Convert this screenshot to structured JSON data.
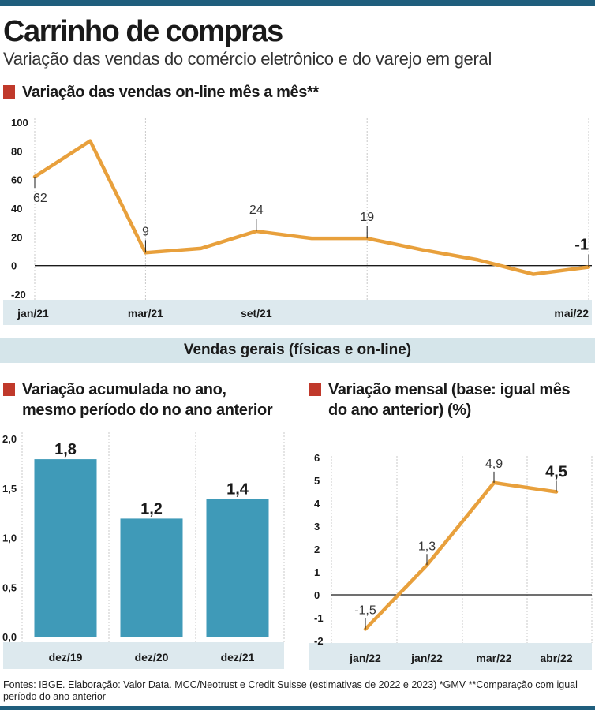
{
  "header": {
    "title": "Carrinho de compras",
    "subtitle": "Variação das vendas do comércio eletrônico e do varejo em geral"
  },
  "band_label": "Vendas gerais (físicas e on-line)",
  "footer": "Fontes: IBGE. Elaboração: Valor Data. MCC/Neotrust e Credit Suisse (estimativas de 2022 e 2023) *GMV **Comparação com igual período do ano anterior",
  "colors": {
    "line": "#e8a03c",
    "bar": "#3f9ab8",
    "accent": "#c0392b",
    "band": "#d5e5ea",
    "frame": "#1f5e7d"
  },
  "chart_data": [
    {
      "type": "line",
      "title": "Variação das vendas on-line mês a mês**",
      "x_tick_labels": [
        "jan/21",
        "mar/21",
        "set/21",
        "mai/22"
      ],
      "values": [
        62,
        87,
        9,
        12,
        24,
        19,
        19,
        11,
        4,
        -6,
        -1
      ],
      "labeled_points": [
        {
          "index": 0,
          "text": "62"
        },
        {
          "index": 2,
          "text": "9"
        },
        {
          "index": 4,
          "text": "24"
        },
        {
          "index": 6,
          "text": "19"
        },
        {
          "index": 10,
          "text": "-1",
          "bold": true
        }
      ],
      "y_ticks": [
        {
          "value": 100,
          "label": "100"
        },
        {
          "value": 80,
          "label": "80"
        },
        {
          "value": 60,
          "label": "60"
        },
        {
          "value": 40,
          "label": "40"
        },
        {
          "value": 20,
          "label": "20"
        },
        {
          "value": 0,
          "label": "0"
        },
        {
          "value": -20,
          "label": "-20"
        }
      ],
      "ylim": [
        -20,
        100
      ],
      "grid": "vertical"
    },
    {
      "type": "bar",
      "title_lines": [
        "Variação acumulada no ano,",
        "mesmo período do no ano anterior"
      ],
      "categories": [
        "dez/19",
        "dez/20",
        "dez/21"
      ],
      "values": [
        1.8,
        1.2,
        1.4
      ],
      "value_labels": [
        "1,8",
        "1,2",
        "1,4"
      ],
      "y_ticks": [
        {
          "value": 2.0,
          "label": "2,0"
        },
        {
          "value": 1.5,
          "label": "1,5"
        },
        {
          "value": 1.0,
          "label": "1,0"
        },
        {
          "value": 0.5,
          "label": "0,5"
        },
        {
          "value": 0,
          "label": "0,0"
        }
      ],
      "ylim": [
        0,
        2.0
      ],
      "grid": "vertical"
    },
    {
      "type": "line",
      "title_lines": [
        "Variação mensal (base: igual mês",
        "do ano anterior) (%)"
      ],
      "x_tick_labels": [
        "jan/22",
        "jan/22",
        "mar/22",
        "abr/22"
      ],
      "values": [
        -1.5,
        1.3,
        4.9,
        4.5
      ],
      "value_labels": [
        "-1,5",
        "1,3",
        "4,9",
        "4,5"
      ],
      "y_ticks": [
        {
          "value": 6,
          "label": "6"
        },
        {
          "value": 5,
          "label": "5"
        },
        {
          "value": 4,
          "label": "4"
        },
        {
          "value": 3,
          "label": "3"
        },
        {
          "value": 2,
          "label": "2"
        },
        {
          "value": 1,
          "label": "1"
        },
        {
          "value": 0,
          "label": "0"
        },
        {
          "value": -1,
          "label": "-1"
        },
        {
          "value": -2,
          "label": "-2"
        }
      ],
      "ylim": [
        -2,
        6
      ],
      "grid": "vertical"
    }
  ]
}
